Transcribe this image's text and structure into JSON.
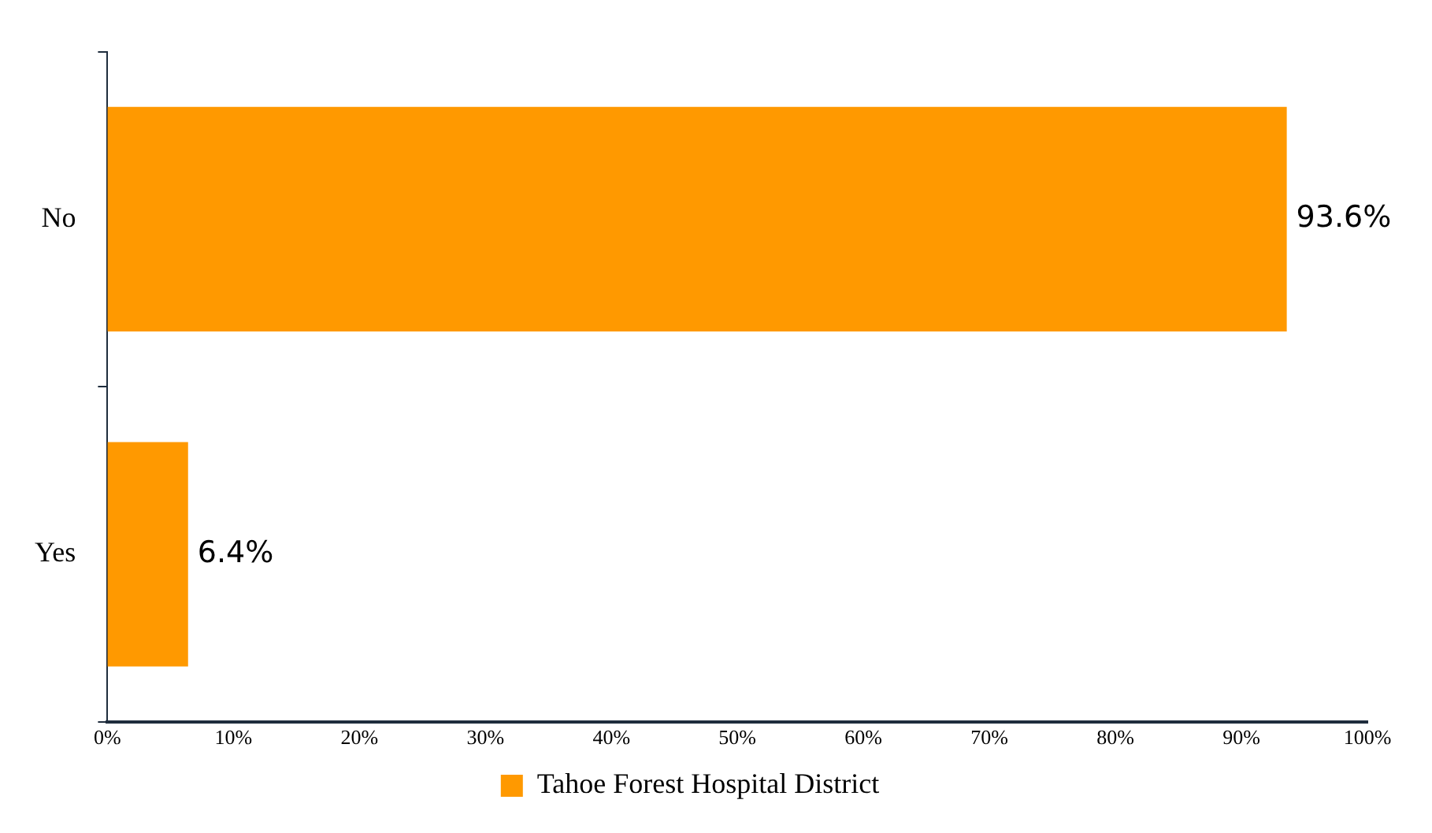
{
  "chart_data": {
    "type": "bar",
    "orientation": "horizontal",
    "categories": [
      "No",
      "Yes"
    ],
    "series": [
      {
        "name": "Tahoe Forest Hospital District",
        "color": "#ff9900",
        "values": [
          93.6,
          6.4
        ]
      }
    ],
    "xlim": [
      0,
      100
    ],
    "xticks": [
      {
        "value": 0,
        "label": "0%"
      },
      {
        "value": 10,
        "label": "10%"
      },
      {
        "value": 20,
        "label": "20%"
      },
      {
        "value": 30,
        "label": "30%"
      },
      {
        "value": 40,
        "label": "40%"
      },
      {
        "value": 50,
        "label": "50%"
      },
      {
        "value": 60,
        "label": "60%"
      },
      {
        "value": 70,
        "label": "70%"
      },
      {
        "value": 80,
        "label": "80%"
      },
      {
        "value": 90,
        "label": "90%"
      },
      {
        "value": 100,
        "label": "100%"
      }
    ],
    "value_labels": [
      "93.6%",
      "6.4%"
    ],
    "grid": false,
    "legend": "bottom"
  }
}
